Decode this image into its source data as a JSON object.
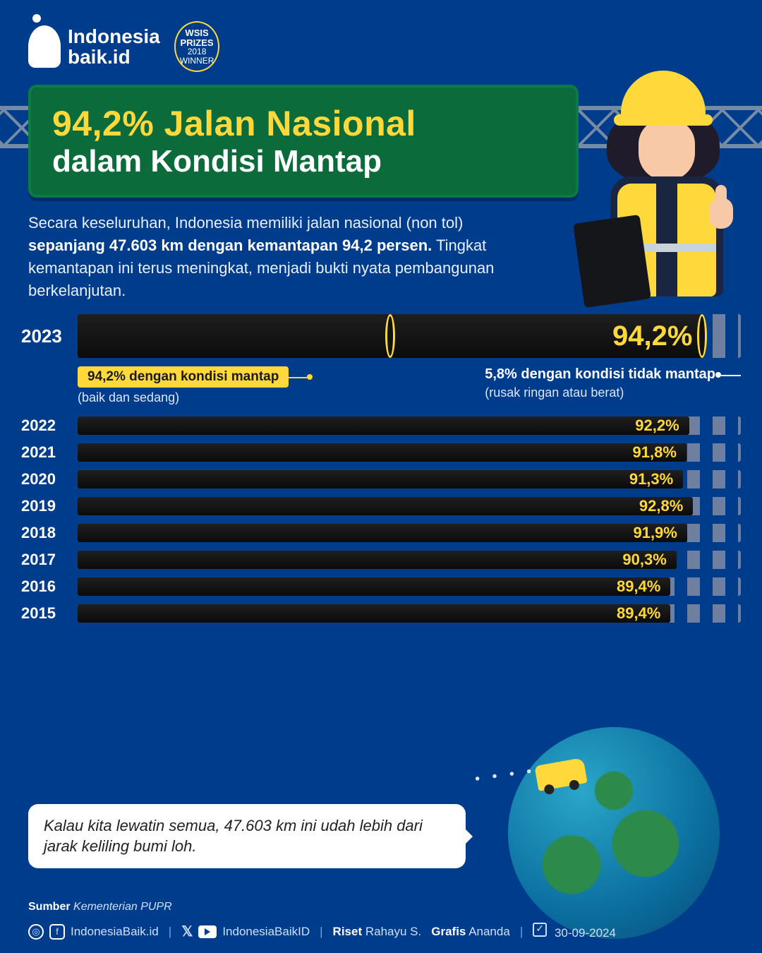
{
  "brand": {
    "name_line1": "Indonesia",
    "name_line2": "baik.id",
    "badge_top": "WSIS",
    "badge_mid": "PRIZES",
    "badge_year": "2018",
    "badge_bot": "WINNER"
  },
  "sign": {
    "line1": "94,2% Jalan Nasional",
    "line2": "dalam Kondisi Mantap",
    "bg_color": "#0b6b3a",
    "accent_color": "#ffd93b"
  },
  "intro": {
    "t1": "Secara keseluruhan, Indonesia memiliki jalan nasional (non tol) ",
    "b1": "sepanjang 47.603 km dengan kemantapan 94,2 persen.",
    "t2": " Tingkat kemantapan ini terus meningkat, menjadi bukti nyata pembangunan berkelanjutan."
  },
  "chart": {
    "type": "bar-horizontal",
    "value_color": "#ffd93b",
    "bar_color": "#111111",
    "track_dash_color": "#6e7fa0",
    "max_pct": 100,
    "hero": {
      "year": "2023",
      "value_label": "94,2%",
      "pct": 94.2
    },
    "callout_left": {
      "pill": "94,2% dengan kondisi mantap",
      "sub": "(baik dan sedang)"
    },
    "callout_right": {
      "line": "5,8% dengan kondisi tidak mantap",
      "sub": "(rusak ringan atau berat)"
    },
    "rows": [
      {
        "year": "2022",
        "label": "92,2%",
        "pct": 92.2
      },
      {
        "year": "2021",
        "label": "91,8%",
        "pct": 91.8
      },
      {
        "year": "2020",
        "label": "91,3%",
        "pct": 91.3
      },
      {
        "year": "2019",
        "label": "92,8%",
        "pct": 92.8
      },
      {
        "year": "2018",
        "label": "91,9%",
        "pct": 91.9
      },
      {
        "year": "2017",
        "label": "90,3%",
        "pct": 90.3
      },
      {
        "year": "2016",
        "label": "89,4%",
        "pct": 89.4
      },
      {
        "year": "2015",
        "label": "89,4%",
        "pct": 89.4
      }
    ]
  },
  "bubble": {
    "text": "Kalau kita lewatin semua, 47.603 km ini udah lebih dari jarak keliling bumi loh."
  },
  "footer": {
    "source_label": "Sumber",
    "source_value": "Kementerian PUPR",
    "handle1": "IndonesiaBaik.id",
    "handle2": "IndonesiaBaikID",
    "riset_label": "Riset",
    "riset_value": "Rahayu S.",
    "grafis_label": "Grafis",
    "grafis_value": "Ananda",
    "date": "30-09-2024"
  },
  "colors": {
    "page_bg": "#003c8c",
    "text": "#ffffff",
    "accent": "#ffd93b"
  }
}
